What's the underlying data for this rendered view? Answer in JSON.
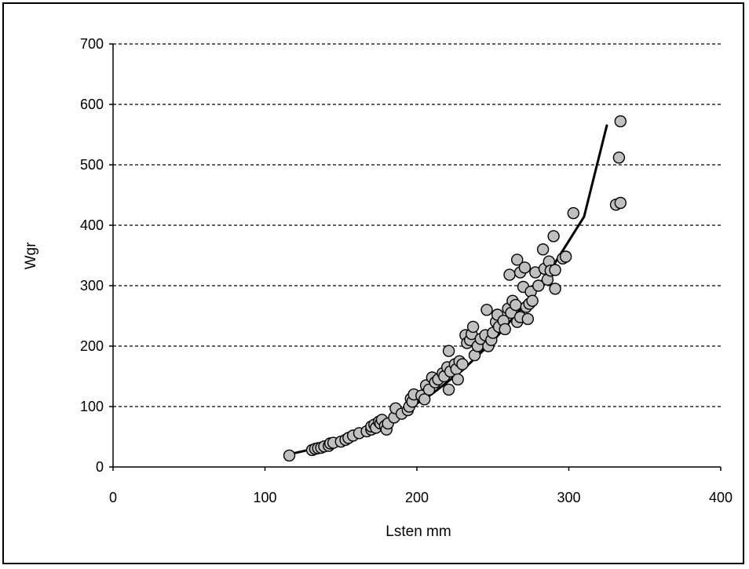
{
  "chart_data": {
    "type": "scatter",
    "xlabel": "Lsten mm",
    "ylabel": "Wgr",
    "xlim": [
      0,
      400
    ],
    "ylim": [
      0,
      700
    ],
    "x_ticks": [
      0,
      100,
      200,
      300,
      400
    ],
    "y_ticks": [
      0,
      100,
      200,
      300,
      400,
      500,
      600,
      700
    ],
    "grid": "horizontal dashed",
    "point_color": "#c0c0c0",
    "points": [
      [
        116,
        19
      ],
      [
        131,
        28
      ],
      [
        133,
        30
      ],
      [
        135,
        31
      ],
      [
        137,
        32
      ],
      [
        139,
        34
      ],
      [
        142,
        35
      ],
      [
        143,
        39
      ],
      [
        145,
        40
      ],
      [
        150,
        42
      ],
      [
        153,
        45
      ],
      [
        155,
        48
      ],
      [
        158,
        52
      ],
      [
        162,
        56
      ],
      [
        167,
        59
      ],
      [
        170,
        62
      ],
      [
        170,
        67
      ],
      [
        172,
        70
      ],
      [
        173,
        65
      ],
      [
        175,
        75
      ],
      [
        176,
        72
      ],
      [
        177,
        78
      ],
      [
        179,
        68
      ],
      [
        180,
        62
      ],
      [
        181,
        72
      ],
      [
        185,
        82
      ],
      [
        186,
        97
      ],
      [
        190,
        88
      ],
      [
        194,
        94
      ],
      [
        195,
        100
      ],
      [
        196,
        113
      ],
      [
        197,
        108
      ],
      [
        198,
        120
      ],
      [
        203,
        118
      ],
      [
        205,
        112
      ],
      [
        206,
        135
      ],
      [
        208,
        128
      ],
      [
        210,
        148
      ],
      [
        212,
        140
      ],
      [
        214,
        145
      ],
      [
        217,
        155
      ],
      [
        218,
        150
      ],
      [
        220,
        165
      ],
      [
        221,
        192
      ],
      [
        221,
        128
      ],
      [
        222,
        158
      ],
      [
        225,
        170
      ],
      [
        226,
        162
      ],
      [
        227,
        145
      ],
      [
        228,
        175
      ],
      [
        230,
        170
      ],
      [
        232,
        218
      ],
      [
        233,
        205
      ],
      [
        235,
        210
      ],
      [
        236,
        220
      ],
      [
        237,
        232
      ],
      [
        238,
        185
      ],
      [
        240,
        200
      ],
      [
        242,
        212
      ],
      [
        245,
        218
      ],
      [
        246,
        260
      ],
      [
        247,
        200
      ],
      [
        249,
        210
      ],
      [
        250,
        222
      ],
      [
        252,
        240
      ],
      [
        253,
        252
      ],
      [
        254,
        232
      ],
      [
        257,
        242
      ],
      [
        258,
        228
      ],
      [
        260,
        262
      ],
      [
        261,
        318
      ],
      [
        262,
        255
      ],
      [
        263,
        275
      ],
      [
        265,
        268
      ],
      [
        266,
        240
      ],
      [
        266,
        343
      ],
      [
        268,
        322
      ],
      [
        268,
        248
      ],
      [
        270,
        298
      ],
      [
        271,
        330
      ],
      [
        272,
        265
      ],
      [
        273,
        245
      ],
      [
        274,
        270
      ],
      [
        275,
        290
      ],
      [
        276,
        275
      ],
      [
        278,
        322
      ],
      [
        280,
        300
      ],
      [
        283,
        360
      ],
      [
        284,
        328
      ],
      [
        286,
        310
      ],
      [
        287,
        340
      ],
      [
        288,
        325
      ],
      [
        290,
        382
      ],
      [
        291,
        326
      ],
      [
        291,
        295
      ],
      [
        296,
        345
      ],
      [
        298,
        348
      ],
      [
        303,
        420
      ],
      [
        331,
        434
      ],
      [
        333,
        512
      ],
      [
        334,
        437
      ],
      [
        334,
        572
      ]
    ],
    "trendline": {
      "type": "power",
      "x": [
        116,
        130,
        150,
        170,
        190,
        210,
        230,
        250,
        270,
        290,
        310,
        325
      ],
      "y": [
        21,
        29,
        43,
        63,
        89,
        121,
        160,
        208,
        266,
        334,
        414,
        565
      ]
    }
  }
}
